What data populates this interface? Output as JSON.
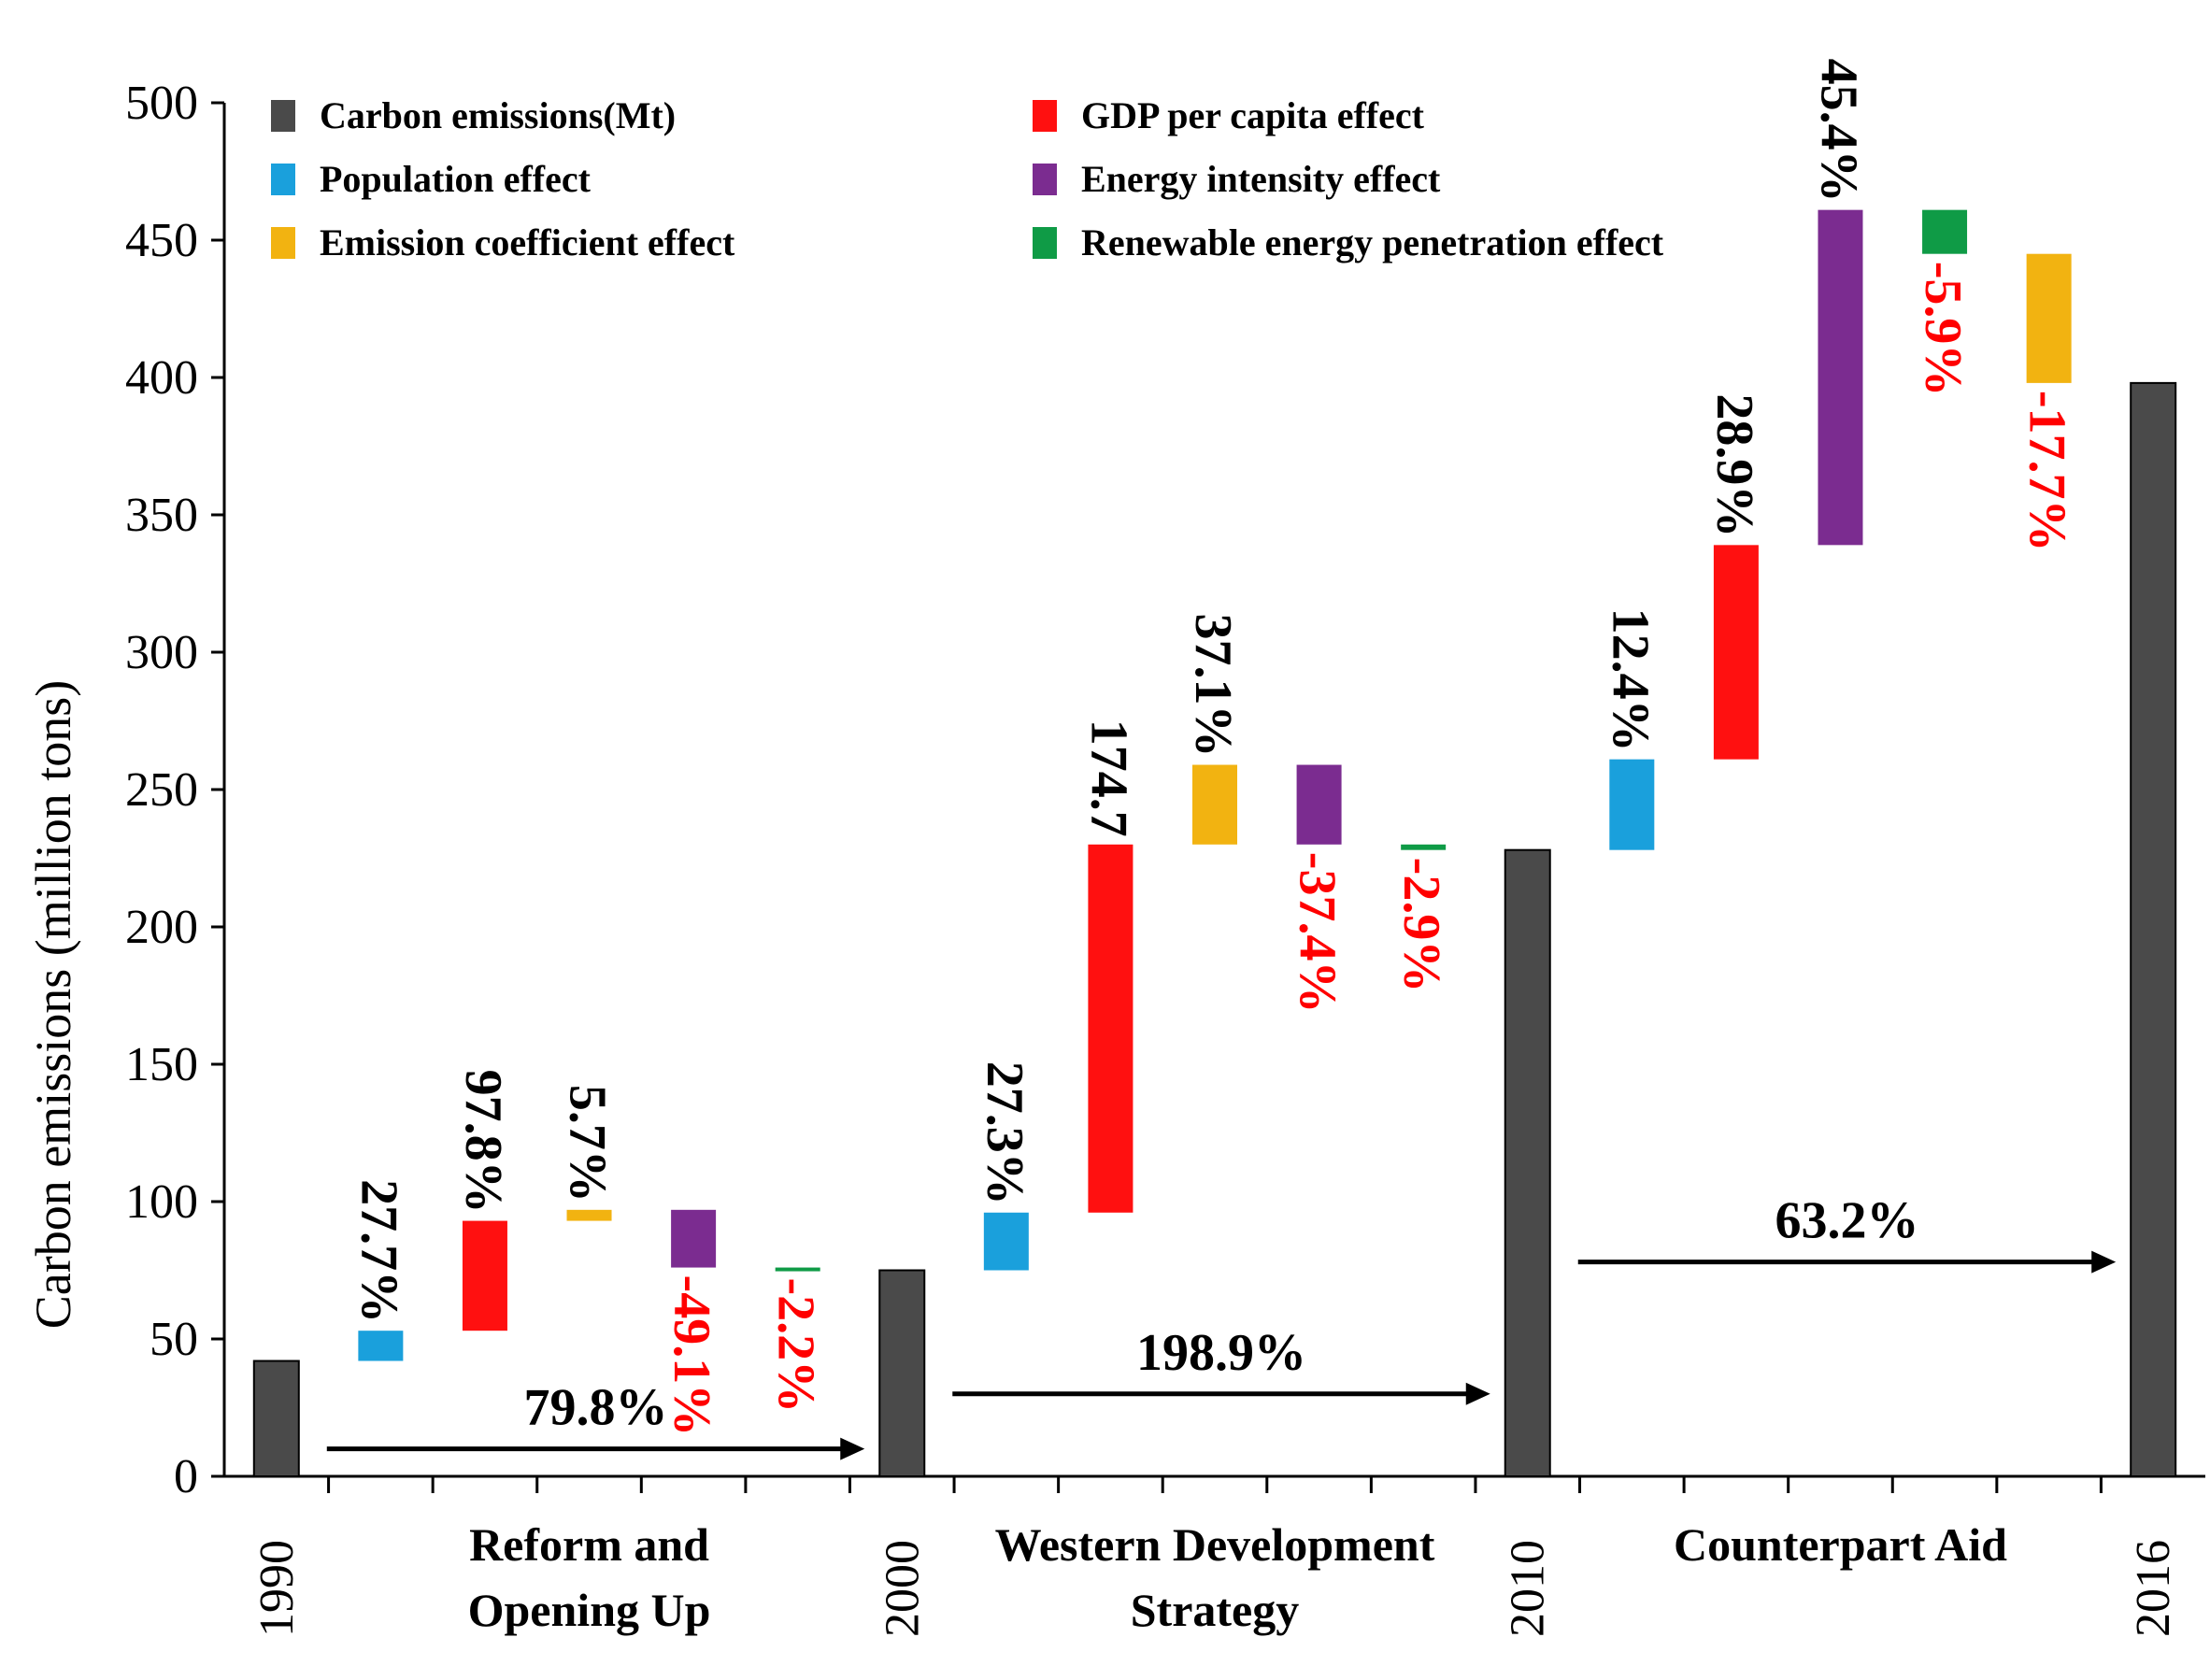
{
  "chart_data": {
    "type": "bar",
    "subtype": "waterfall",
    "ylabel": "Carbon emissions (million tons)",
    "ylim": [
      0,
      500
    ],
    "yticks": [
      0,
      50,
      100,
      150,
      200,
      250,
      300,
      350,
      400,
      450,
      500
    ],
    "colors": {
      "emissions": "#4a4a4a",
      "population": "#1aa0dc",
      "gdp": "#ff1010",
      "energy_intensity": "#7b2c90",
      "emission_coefficient": "#f2b311",
      "renewable": "#0f9b46",
      "positive_label": "#000000",
      "negative_label": "#ff0000"
    },
    "legend": [
      {
        "key": "emissions",
        "label": "Carbon emissions(Mt)"
      },
      {
        "key": "gdp",
        "label": "GDP per capita effect"
      },
      {
        "key": "population",
        "label": "Population effect"
      },
      {
        "key": "energy_intensity",
        "label": "Energy intensity effect"
      },
      {
        "key": "emission_coefficient",
        "label": "Emission coefficient effect"
      },
      {
        "key": "renewable",
        "label": "Renewable energy penetration effect"
      }
    ],
    "years": [
      {
        "label": "1990",
        "value": 42
      },
      {
        "label": "2000",
        "value": 75
      },
      {
        "label": "2010",
        "value": 228
      },
      {
        "label": "2016",
        "value": 398
      }
    ],
    "periods": [
      {
        "name_lines": [
          "Reform and",
          "Opening Up"
        ],
        "change_label": "79.8%",
        "effects": [
          {
            "key": "population",
            "from": 42,
            "to": 53,
            "label": "27.7%"
          },
          {
            "key": "gdp",
            "from": 53,
            "to": 93,
            "label": "97.8%"
          },
          {
            "key": "emission_coefficient",
            "from": 93,
            "to": 97,
            "label": "5.7%"
          },
          {
            "key": "energy_intensity",
            "from": 97,
            "to": 76,
            "label": "-49.1%"
          },
          {
            "key": "renewable",
            "from": 76,
            "to": 75,
            "label": "-2.2%"
          }
        ]
      },
      {
        "name_lines": [
          "Western Development",
          "Strategy"
        ],
        "change_label": "198.9%",
        "effects": [
          {
            "key": "population",
            "from": 75,
            "to": 96,
            "label": "27.3%"
          },
          {
            "key": "gdp",
            "from": 96,
            "to": 230,
            "label": "174.7"
          },
          {
            "key": "emission_coefficient",
            "from": 230,
            "to": 259,
            "label": "37.1%"
          },
          {
            "key": "energy_intensity",
            "from": 259,
            "to": 230,
            "label": "-37.4%"
          },
          {
            "key": "renewable",
            "from": 230,
            "to": 228,
            "label": "-2.9%"
          }
        ]
      },
      {
        "name_lines": [
          "Counterpart Aid"
        ],
        "change_label": "63.2%",
        "effects": [
          {
            "key": "population",
            "from": 228,
            "to": 261,
            "label": "12.4%"
          },
          {
            "key": "gdp",
            "from": 261,
            "to": 339,
            "label": "28.9%"
          },
          {
            "key": "energy_intensity",
            "from": 339,
            "to": 461,
            "label": "45.4%"
          },
          {
            "key": "renewable",
            "from": 461,
            "to": 445,
            "label": "-5.9%"
          },
          {
            "key": "emission_coefficient",
            "from": 445,
            "to": 398,
            "label": "-17.7%"
          }
        ]
      }
    ]
  }
}
